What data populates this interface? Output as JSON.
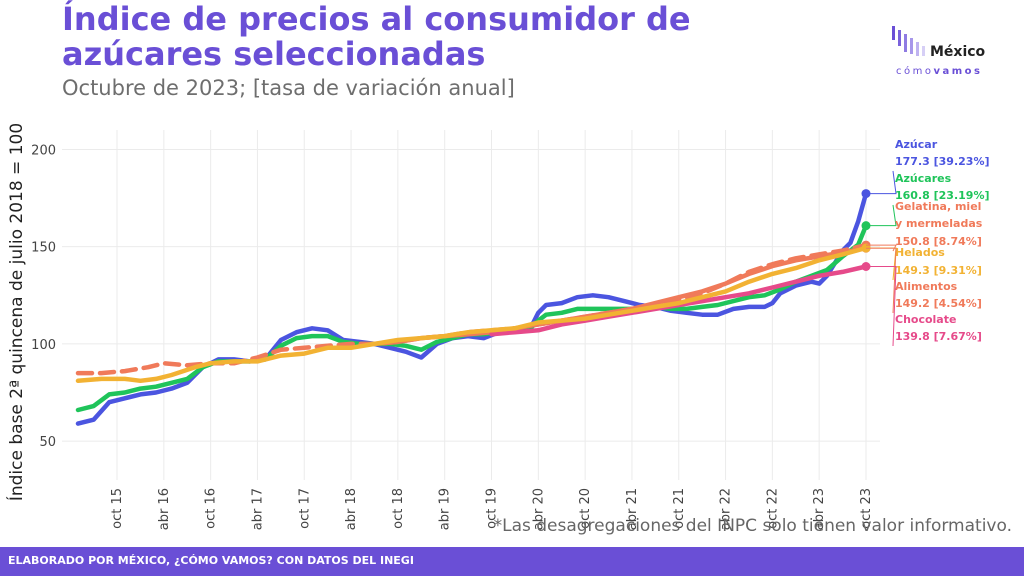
{
  "header": {
    "title": "Índice de precios al consumidor de azúcares seleccionadas",
    "subtitle": "Octubre de 2023; [tasa de variación anual]"
  },
  "logo": {
    "word": "México",
    "sub1": "cómo",
    "sub2": "vamos"
  },
  "note": "*Las desagregaciones del INPC solo tienen valor informativo.",
  "footer": "ELABORADO POR MÉXICO, ¿CÓMO VAMOS? CON DATOS DEL INEGI",
  "chart_data": {
    "type": "line",
    "ylabel": "Índice base 2ª quincena de julio 2018 = 100",
    "xlabel": "",
    "ylim": [
      30,
      210
    ],
    "yticks": [
      50,
      100,
      150,
      200
    ],
    "x_range": [
      "2015-05",
      "2023-10"
    ],
    "x_ticks": [
      {
        "label": "oct 15",
        "date": "2015-10"
      },
      {
        "label": "abr 16",
        "date": "2016-04"
      },
      {
        "label": "oct 16",
        "date": "2016-10"
      },
      {
        "label": "abr 17",
        "date": "2017-04"
      },
      {
        "label": "oct 17",
        "date": "2017-10"
      },
      {
        "label": "abr 18",
        "date": "2018-04"
      },
      {
        "label": "oct 18",
        "date": "2018-10"
      },
      {
        "label": "abr 19",
        "date": "2019-04"
      },
      {
        "label": "oct 19",
        "date": "2019-10"
      },
      {
        "label": "abr 20",
        "date": "2020-04"
      },
      {
        "label": "oct 20",
        "date": "2020-10"
      },
      {
        "label": "abr 21",
        "date": "2021-04"
      },
      {
        "label": "oct 21",
        "date": "2021-10"
      },
      {
        "label": "abr 22",
        "date": "2022-04"
      },
      {
        "label": "oct 22",
        "date": "2022-10"
      },
      {
        "label": "abr 23",
        "date": "2023-04"
      },
      {
        "label": "oct 23",
        "date": "2023-10"
      }
    ],
    "grid": true,
    "legend": "end-labels",
    "series": [
      {
        "name": "Azúcar",
        "label": "177.3 [39.23%]",
        "color": "#4b55e0",
        "dashed": false,
        "points": [
          [
            "2015-05",
            59
          ],
          [
            "2015-07",
            61
          ],
          [
            "2015-09",
            70
          ],
          [
            "2015-11",
            72
          ],
          [
            "2016-01",
            74
          ],
          [
            "2016-03",
            75
          ],
          [
            "2016-05",
            77
          ],
          [
            "2016-07",
            80
          ],
          [
            "2016-09",
            88
          ],
          [
            "2016-11",
            92
          ],
          [
            "2017-01",
            92
          ],
          [
            "2017-03",
            91
          ],
          [
            "2017-05",
            92
          ],
          [
            "2017-07",
            102
          ],
          [
            "2017-09",
            106
          ],
          [
            "2017-11",
            108
          ],
          [
            "2018-01",
            107
          ],
          [
            "2018-03",
            102
          ],
          [
            "2018-05",
            101
          ],
          [
            "2018-07",
            100
          ],
          [
            "2018-09",
            98
          ],
          [
            "2018-11",
            96
          ],
          [
            "2019-01",
            93
          ],
          [
            "2019-03",
            100
          ],
          [
            "2019-05",
            103
          ],
          [
            "2019-07",
            104
          ],
          [
            "2019-09",
            103
          ],
          [
            "2019-11",
            106
          ],
          [
            "2020-01",
            107
          ],
          [
            "2020-03",
            108
          ],
          [
            "2020-04",
            116
          ],
          [
            "2020-05",
            120
          ],
          [
            "2020-07",
            121
          ],
          [
            "2020-09",
            124
          ],
          [
            "2020-11",
            125
          ],
          [
            "2021-01",
            124
          ],
          [
            "2021-03",
            122
          ],
          [
            "2021-05",
            120
          ],
          [
            "2021-07",
            119
          ],
          [
            "2021-09",
            117
          ],
          [
            "2021-11",
            116
          ],
          [
            "2022-01",
            115
          ],
          [
            "2022-03",
            115
          ],
          [
            "2022-05",
            118
          ],
          [
            "2022-07",
            119
          ],
          [
            "2022-09",
            119
          ],
          [
            "2022-10",
            121
          ],
          [
            "2022-11",
            126
          ],
          [
            "2023-01",
            130
          ],
          [
            "2023-03",
            132
          ],
          [
            "2023-04",
            131
          ],
          [
            "2023-05",
            135
          ],
          [
            "2023-07",
            148
          ],
          [
            "2023-08",
            152
          ],
          [
            "2023-09",
            163
          ],
          [
            "2023-10",
            177.3
          ]
        ]
      },
      {
        "name": "Azúcares",
        "label": "160.8 [23.19%]",
        "color": "#1fc45a",
        "dashed": false,
        "points": [
          [
            "2015-05",
            66
          ],
          [
            "2015-07",
            68
          ],
          [
            "2015-09",
            74
          ],
          [
            "2015-11",
            75
          ],
          [
            "2016-01",
            77
          ],
          [
            "2016-03",
            78
          ],
          [
            "2016-05",
            80
          ],
          [
            "2016-07",
            82
          ],
          [
            "2016-09",
            88
          ],
          [
            "2016-11",
            91
          ],
          [
            "2017-01",
            91
          ],
          [
            "2017-03",
            91
          ],
          [
            "2017-05",
            92
          ],
          [
            "2017-07",
            99
          ],
          [
            "2017-09",
            103
          ],
          [
            "2017-11",
            104
          ],
          [
            "2018-01",
            104
          ],
          [
            "2018-03",
            101
          ],
          [
            "2018-05",
            100
          ],
          [
            "2018-07",
            100
          ],
          [
            "2018-09",
            100
          ],
          [
            "2018-11",
            99
          ],
          [
            "2019-01",
            97
          ],
          [
            "2019-03",
            101
          ],
          [
            "2019-05",
            103
          ],
          [
            "2019-07",
            105
          ],
          [
            "2019-09",
            105
          ],
          [
            "2019-11",
            106
          ],
          [
            "2020-01",
            107
          ],
          [
            "2020-03",
            108
          ],
          [
            "2020-04",
            112
          ],
          [
            "2020-05",
            115
          ],
          [
            "2020-07",
            116
          ],
          [
            "2020-09",
            118
          ],
          [
            "2020-11",
            118
          ],
          [
            "2021-01",
            118
          ],
          [
            "2021-03",
            118
          ],
          [
            "2021-05",
            118
          ],
          [
            "2021-07",
            119
          ],
          [
            "2021-09",
            118
          ],
          [
            "2021-11",
            118
          ],
          [
            "2022-01",
            119
          ],
          [
            "2022-03",
            120
          ],
          [
            "2022-05",
            122
          ],
          [
            "2022-07",
            124
          ],
          [
            "2022-09",
            125
          ],
          [
            "2022-11",
            128
          ],
          [
            "2023-01",
            132
          ],
          [
            "2023-03",
            135
          ],
          [
            "2023-05",
            138
          ],
          [
            "2023-07",
            145
          ],
          [
            "2023-09",
            151
          ],
          [
            "2023-10",
            160.8
          ]
        ]
      },
      {
        "name": "Gelatina, miel y mermeladas",
        "label": "150.8 [8.74%]",
        "color": "#f07a5a",
        "dashed": true,
        "points": [
          [
            "2015-05",
            85
          ],
          [
            "2015-08",
            85
          ],
          [
            "2015-11",
            86
          ],
          [
            "2016-02",
            88
          ],
          [
            "2016-04",
            90
          ],
          [
            "2016-07",
            89
          ],
          [
            "2016-10",
            90
          ],
          [
            "2017-01",
            90
          ],
          [
            "2017-04",
            93
          ],
          [
            "2017-07",
            97
          ],
          [
            "2017-10",
            98
          ],
          [
            "2018-01",
            99
          ],
          [
            "2018-04",
            100
          ],
          [
            "2018-07",
            100
          ],
          [
            "2018-10",
            101
          ],
          [
            "2019-01",
            103
          ],
          [
            "2019-04",
            104
          ],
          [
            "2019-07",
            106
          ],
          [
            "2019-10",
            107
          ],
          [
            "2020-01",
            108
          ],
          [
            "2020-04",
            110
          ],
          [
            "2020-07",
            112
          ],
          [
            "2020-10",
            114
          ],
          [
            "2021-01",
            116
          ],
          [
            "2021-04",
            118
          ],
          [
            "2021-07",
            120
          ],
          [
            "2021-10",
            123
          ],
          [
            "2022-01",
            126
          ],
          [
            "2022-04",
            131
          ],
          [
            "2022-07",
            137
          ],
          [
            "2022-10",
            141
          ],
          [
            "2023-01",
            144
          ],
          [
            "2023-04",
            146
          ],
          [
            "2023-07",
            148
          ],
          [
            "2023-10",
            150.8
          ]
        ]
      },
      {
        "name": "Helados",
        "label": "149.3 [9.31%]",
        "color": "#f2b233",
        "dashed": false,
        "points": [
          [
            "2015-05",
            81
          ],
          [
            "2015-08",
            82
          ],
          [
            "2015-11",
            82
          ],
          [
            "2016-01",
            81
          ],
          [
            "2016-03",
            82
          ],
          [
            "2016-05",
            84
          ],
          [
            "2016-08",
            88
          ],
          [
            "2016-10",
            90
          ],
          [
            "2017-01",
            91
          ],
          [
            "2017-04",
            91
          ],
          [
            "2017-07",
            94
          ],
          [
            "2017-10",
            95
          ],
          [
            "2018-01",
            98
          ],
          [
            "2018-04",
            98
          ],
          [
            "2018-07",
            100
          ],
          [
            "2018-10",
            102
          ],
          [
            "2019-01",
            103
          ],
          [
            "2019-04",
            104
          ],
          [
            "2019-07",
            106
          ],
          [
            "2019-10",
            107
          ],
          [
            "2020-01",
            108
          ],
          [
            "2020-04",
            111
          ],
          [
            "2020-07",
            112
          ],
          [
            "2020-10",
            113
          ],
          [
            "2021-01",
            115
          ],
          [
            "2021-04",
            117
          ],
          [
            "2021-07",
            119
          ],
          [
            "2021-10",
            121
          ],
          [
            "2022-01",
            124
          ],
          [
            "2022-04",
            127
          ],
          [
            "2022-07",
            132
          ],
          [
            "2022-10",
            136
          ],
          [
            "2023-01",
            139
          ],
          [
            "2023-04",
            143
          ],
          [
            "2023-07",
            146
          ],
          [
            "2023-10",
            149.3
          ]
        ]
      },
      {
        "name": "Alimentos",
        "label": "149.2 [4.54%]",
        "color": "#f07a5a",
        "dashed": false,
        "points": [
          [
            "2018-07",
            100
          ],
          [
            "2018-10",
            101
          ],
          [
            "2019-01",
            103
          ],
          [
            "2019-04",
            104
          ],
          [
            "2019-07",
            105
          ],
          [
            "2019-10",
            106
          ],
          [
            "2020-01",
            108
          ],
          [
            "2020-04",
            110
          ],
          [
            "2020-07",
            112
          ],
          [
            "2020-10",
            114
          ],
          [
            "2021-01",
            116
          ],
          [
            "2021-04",
            118
          ],
          [
            "2021-07",
            121
          ],
          [
            "2021-10",
            124
          ],
          [
            "2022-01",
            127
          ],
          [
            "2022-04",
            131
          ],
          [
            "2022-07",
            136
          ],
          [
            "2022-10",
            140
          ],
          [
            "2023-01",
            143
          ],
          [
            "2023-04",
            145
          ],
          [
            "2023-07",
            147
          ],
          [
            "2023-10",
            149.2
          ]
        ]
      },
      {
        "name": "Chocolate",
        "label": "139.8 [7.67%]",
        "color": "#e64a8a",
        "dashed": false,
        "points": [
          [
            "2019-10",
            105
          ],
          [
            "2020-01",
            106
          ],
          [
            "2020-04",
            107
          ],
          [
            "2020-07",
            110
          ],
          [
            "2020-10",
            112
          ],
          [
            "2021-01",
            114
          ],
          [
            "2021-04",
            116
          ],
          [
            "2021-07",
            118
          ],
          [
            "2021-10",
            120
          ],
          [
            "2022-01",
            122
          ],
          [
            "2022-04",
            124
          ],
          [
            "2022-07",
            126
          ],
          [
            "2022-10",
            129
          ],
          [
            "2023-01",
            132
          ],
          [
            "2023-04",
            135
          ],
          [
            "2023-07",
            137
          ],
          [
            "2023-10",
            139.8
          ]
        ]
      }
    ]
  }
}
